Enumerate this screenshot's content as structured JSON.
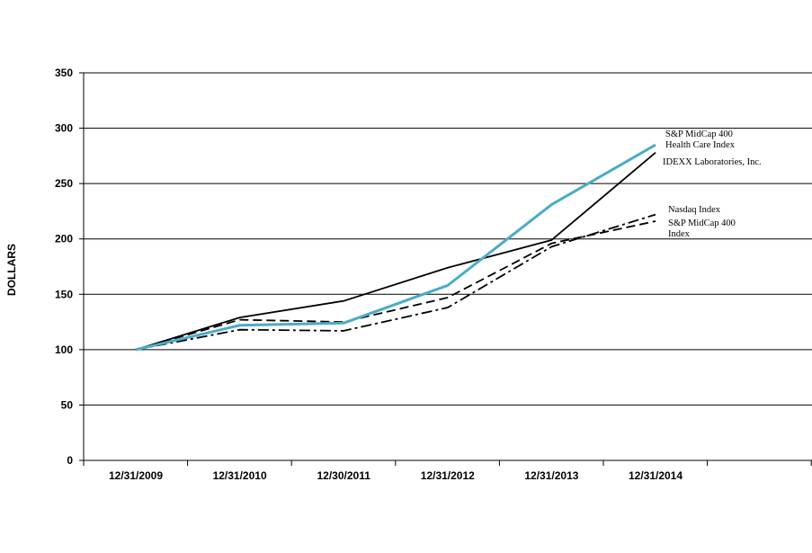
{
  "chart_data": {
    "type": "line",
    "title": "",
    "xlabel": "",
    "ylabel": "DOLLARS",
    "categories": [
      "12/31/2009",
      "12/31/2010",
      "12/30/2011",
      "12/31/2012",
      "12/31/2013",
      "12/31/2014"
    ],
    "ylim": [
      0,
      350
    ],
    "yticks": [
      0,
      50,
      100,
      150,
      200,
      250,
      300,
      350
    ],
    "grid": true,
    "series": [
      {
        "name": "IDEXX Laboratories, Inc.",
        "values": [
          100,
          129,
          144,
          174,
          199,
          278
        ],
        "color": "#000000",
        "style": "solid"
      },
      {
        "name": "S&P MidCap 400 Health Care Index",
        "label_lines": [
          "S&P MidCap 400",
          "Health Care Index"
        ],
        "values": [
          100,
          122,
          124,
          158,
          231,
          285
        ],
        "color": "#4bacc6",
        "style": "solid"
      },
      {
        "name": "Nasdaq Index",
        "values": [
          100,
          118,
          117,
          138,
          193,
          222
        ],
        "color": "#000000",
        "style": "dashdot"
      },
      {
        "name": "S&P MidCap 400 Index",
        "label_lines": [
          "S&P MidCap 400",
          "Index"
        ],
        "values": [
          100,
          127,
          125,
          147,
          196,
          216
        ],
        "color": "#000000",
        "style": "dashed"
      }
    ]
  }
}
